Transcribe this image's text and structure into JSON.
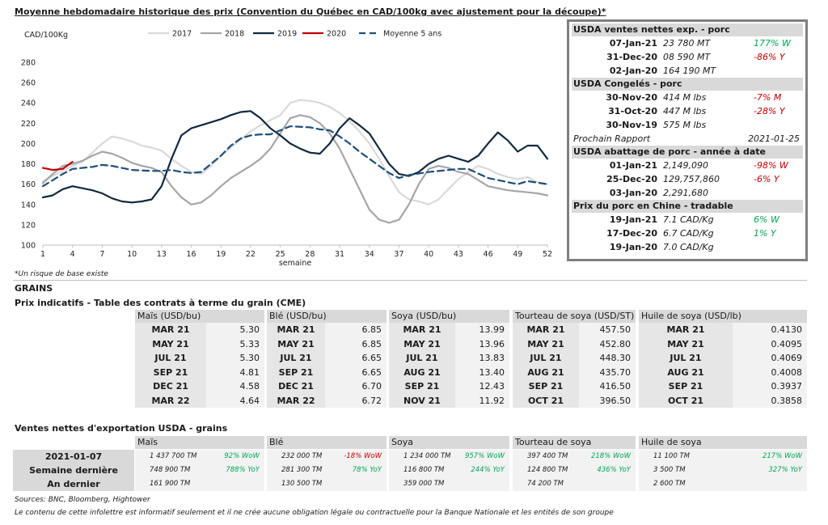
{
  "chart_data": {
    "type": "line",
    "title": "Moyenne hebdomadaire historique des prix (Convention du Québec en CAD/100kg avec ajustement pour la découpe)*",
    "xlabel": "semaine",
    "ylabel": "CAD/100Kg",
    "ylim": [
      100,
      280
    ],
    "xlim": [
      1,
      52
    ],
    "xticks": [
      1,
      4,
      7,
      10,
      13,
      16,
      19,
      22,
      25,
      28,
      31,
      34,
      37,
      40,
      43,
      46,
      49,
      52
    ],
    "yticks": [
      100,
      120,
      140,
      160,
      180,
      200,
      220,
      240,
      260,
      280
    ],
    "legend_position": "top",
    "series": [
      {
        "name": "2017",
        "color": "#d9d9d9",
        "dash": "none",
        "x": [
          1,
          3,
          4,
          5,
          6,
          7,
          8,
          9,
          10,
          11,
          12,
          13,
          14,
          15,
          16,
          17,
          18,
          19,
          20,
          21,
          22,
          23,
          24,
          25,
          26,
          27,
          28,
          29,
          30,
          31,
          32,
          33,
          34,
          35,
          36,
          37,
          38,
          39,
          40,
          41,
          42,
          43,
          44,
          45,
          46,
          47,
          48,
          49,
          50,
          51,
          52
        ],
        "y": [
          163,
          173,
          178,
          182,
          191,
          200,
          207,
          205,
          202,
          198,
          196,
          193,
          185,
          178,
          172,
          170,
          178,
          188,
          196,
          204,
          212,
          218,
          223,
          228,
          240,
          243,
          242,
          240,
          236,
          230,
          222,
          212,
          200,
          185,
          168,
          152,
          145,
          143,
          140,
          145,
          155,
          165,
          172,
          178,
          175,
          170,
          167,
          165,
          167,
          162,
          160
        ]
      },
      {
        "name": "2018",
        "color": "#a6a6a6",
        "dash": "none",
        "x": [
          1,
          2,
          3,
          4,
          5,
          6,
          7,
          8,
          9,
          10,
          11,
          12,
          13,
          14,
          15,
          16,
          17,
          18,
          19,
          20,
          21,
          22,
          23,
          24,
          25,
          26,
          27,
          28,
          29,
          30,
          31,
          32,
          33,
          34,
          35,
          36,
          37,
          38,
          39,
          40,
          41,
          42,
          43,
          44,
          45,
          46,
          47,
          48,
          49,
          50,
          51,
          52
        ],
        "y": [
          161,
          170,
          178,
          180,
          183,
          188,
          192,
          190,
          186,
          181,
          178,
          176,
          172,
          158,
          147,
          140,
          142,
          149,
          158,
          166,
          172,
          178,
          185,
          195,
          210,
          225,
          228,
          226,
          220,
          210,
          195,
          175,
          155,
          135,
          125,
          122,
          125,
          140,
          160,
          175,
          178,
          176,
          172,
          170,
          164,
          158,
          156,
          154,
          153,
          152,
          151,
          149
        ]
      },
      {
        "name": "2019",
        "color": "#10293f",
        "dash": "none",
        "x": [
          1,
          2,
          3,
          4,
          5,
          6,
          7,
          8,
          9,
          10,
          11,
          12,
          13,
          14,
          15,
          16,
          17,
          18,
          19,
          20,
          21,
          22,
          23,
          24,
          25,
          26,
          27,
          28,
          29,
          30,
          31,
          32,
          33,
          34,
          35,
          36,
          37,
          38,
          39,
          40,
          41,
          42,
          43,
          44,
          45,
          46,
          47,
          48,
          49,
          50,
          51,
          52
        ],
        "y": [
          147,
          149,
          155,
          158,
          156,
          154,
          151,
          146,
          143,
          142,
          143,
          145,
          158,
          185,
          208,
          215,
          218,
          221,
          224,
          228,
          231,
          232,
          225,
          215,
          208,
          200,
          195,
          191,
          190,
          200,
          215,
          225,
          218,
          210,
          195,
          180,
          170,
          168,
          172,
          180,
          185,
          188,
          185,
          182,
          188,
          200,
          211,
          203,
          192,
          198,
          198,
          185
        ]
      },
      {
        "name": "2020",
        "color": "#c00000",
        "dash": "none",
        "x": [
          1,
          2,
          3,
          4
        ],
        "y": [
          176,
          174,
          175,
          182
        ]
      },
      {
        "name": "Moyenne 5 ans",
        "color": "#1f4e79",
        "dash": "8,5",
        "x": [
          1,
          3,
          4,
          6,
          7,
          8,
          10,
          12,
          13,
          14,
          15,
          16,
          17,
          18,
          19,
          20,
          21,
          22,
          23,
          24,
          25,
          26,
          28,
          29,
          30,
          31,
          32,
          33,
          34,
          35,
          36,
          37,
          38,
          40,
          42,
          43,
          44,
          46,
          48,
          49,
          50,
          52
        ],
        "y": [
          158,
          170,
          175,
          177,
          179,
          178,
          174,
          173,
          173,
          174,
          172,
          171,
          172,
          180,
          188,
          198,
          205,
          208,
          209,
          209,
          213,
          217,
          216,
          214,
          213,
          207,
          200,
          192,
          185,
          178,
          171,
          166,
          169,
          172,
          174,
          175,
          175,
          166,
          162,
          160,
          163,
          160
        ]
      }
    ]
  },
  "pork": {
    "sections": [
      {
        "title": "USDA ventes nettes exp. - porc",
        "rows": [
          {
            "date": "07-Jan-21",
            "value": "23 780  MT",
            "change": "177% W",
            "sign": "pos"
          },
          {
            "date": "31-Dec-20",
            "value": "08 590  MT",
            "change": "-86% Y",
            "sign": "neg"
          },
          {
            "date": "02-Jan-20",
            "value": "164 190  MT",
            "change": "",
            "sign": ""
          }
        ]
      },
      {
        "title": "USDA Congelés - porc",
        "rows": [
          {
            "date": "30-Nov-20",
            "value": "414 M lbs",
            "change": "-7% M",
            "sign": "neg"
          },
          {
            "date": "31-Oct-20",
            "value": "447 M lbs",
            "change": "-28% Y",
            "sign": "neg"
          },
          {
            "date": "30-Nov-19",
            "value": "575 M lbs",
            "change": "",
            "sign": ""
          }
        ]
      },
      {
        "title": "USDA abattage de porc - année à date",
        "rows": [
          {
            "date": "01-Jan-21",
            "value": "2,149,090",
            "change": "-98% W",
            "sign": "neg"
          },
          {
            "date": "25-Dec-20",
            "value": "129,757,860",
            "change": "-6% Y",
            "sign": "neg"
          },
          {
            "date": "03-Jan-20",
            "value": "2,291,680",
            "change": "",
            "sign": ""
          }
        ]
      },
      {
        "title": "Prix du porc en Chine - tradable",
        "rows": [
          {
            "date": "19-Jan-21",
            "value": "7.1 CAD/Kg",
            "change": "6% W",
            "sign": "pos"
          },
          {
            "date": "17-Dec-20",
            "value": "6.7 CAD/Kg",
            "change": "1% Y",
            "sign": "pos"
          },
          {
            "date": "19-Jan-20",
            "value": "7.0 CAD/Kg",
            "change": "",
            "sign": ""
          }
        ]
      }
    ],
    "next_report_label": "Prochain Rapport",
    "next_report_date": "2021-01-25"
  },
  "footnote": "*Un risque de base existe",
  "grains_label": "GRAINS",
  "futures_title": "Prix indicatifs - Table des contrats à terme du grain (CME)",
  "futures": [
    {
      "title": "Maïs (USD/bu)",
      "rows": [
        [
          "MAR 21",
          "5.30"
        ],
        [
          "MAY 21",
          "5.33"
        ],
        [
          "JUL 21",
          "5.30"
        ],
        [
          "SEP 21",
          "4.81"
        ],
        [
          "DEC 21",
          "4.58"
        ],
        [
          "MAR 22",
          "4.64"
        ]
      ]
    },
    {
      "title": "Blé (USD/bu)",
      "rows": [
        [
          "MAR 21",
          "6.85"
        ],
        [
          "MAY 21",
          "6.85"
        ],
        [
          "JUL 21",
          "6.65"
        ],
        [
          "SEP 21",
          "6.65"
        ],
        [
          "DEC 21",
          "6.70"
        ],
        [
          "MAR 22",
          "6.72"
        ]
      ]
    },
    {
      "title": "Soya (USD/bu)",
      "rows": [
        [
          "MAR 21",
          "13.99"
        ],
        [
          "MAY 21",
          "13.96"
        ],
        [
          "JUL 21",
          "13.83"
        ],
        [
          "AUG 21",
          "13.40"
        ],
        [
          "SEP 21",
          "12.43"
        ],
        [
          "NOV 21",
          "11.92"
        ]
      ]
    },
    {
      "title": "Tourteau de soya (USD/ST)",
      "rows": [
        [
          "MAR 21",
          "457.50"
        ],
        [
          "MAY 21",
          "452.80"
        ],
        [
          "JUL 21",
          "448.30"
        ],
        [
          "AUG 21",
          "435.70"
        ],
        [
          "SEP 21",
          "416.50"
        ],
        [
          "OCT 21",
          "396.50"
        ]
      ]
    },
    {
      "title": "Huile de soya (USD/lb)",
      "rows": [
        [
          "MAR 21",
          "0.4130"
        ],
        [
          "MAY 21",
          "0.4095"
        ],
        [
          "JUL 21",
          "0.4069"
        ],
        [
          "AUG 21",
          "0.4008"
        ],
        [
          "SEP 21",
          "0.3937"
        ],
        [
          "OCT 21",
          "0.3858"
        ]
      ]
    }
  ],
  "exports_title": "Ventes nettes d'exportation USDA - grains",
  "exports": {
    "row_labels": [
      "2021-01-07",
      "Semaine dernière",
      "An dernier"
    ],
    "columns": [
      {
        "title": "Maïs",
        "values": [
          "1 437 700 TM",
          "748 900 TM",
          "161 900 TM"
        ],
        "changes": [
          "92% WoW",
          "788% YoY",
          ""
        ],
        "signs": [
          "pos",
          "pos",
          ""
        ]
      },
      {
        "title": "Blé",
        "values": [
          "232 000 TM",
          "281 300 TM",
          "130 500 TM"
        ],
        "changes": [
          "-18% WoW",
          "78% YoY",
          ""
        ],
        "signs": [
          "neg",
          "pos",
          ""
        ]
      },
      {
        "title": "Soya",
        "values": [
          "1 234 000 TM",
          "116 800 TM",
          "359 000 TM"
        ],
        "changes": [
          "957% WoW",
          "244% YoY",
          ""
        ],
        "signs": [
          "pos",
          "pos",
          ""
        ]
      },
      {
        "title": "Tourteau de soya",
        "values": [
          "397 400 TM",
          "124 800 TM",
          "74 200 TM"
        ],
        "changes": [
          "218% WoW",
          "436% YoY",
          ""
        ],
        "signs": [
          "pos",
          "pos",
          ""
        ]
      },
      {
        "title": "Huile de soya",
        "values": [
          "11 100 TM",
          "3 500 TM",
          "2 600 TM"
        ],
        "changes": [
          "217% WoW",
          "327% YoY",
          ""
        ],
        "signs": [
          "pos",
          "pos",
          ""
        ]
      }
    ]
  },
  "sources": "Sources: BNC, Bloomberg, Hightower",
  "disclaimer": "Le contenu de cette infolettre est informatif seulement et il ne crée aucune obligation légale ou contractuelle pour la Banque Nationale et les entités de son groupe"
}
